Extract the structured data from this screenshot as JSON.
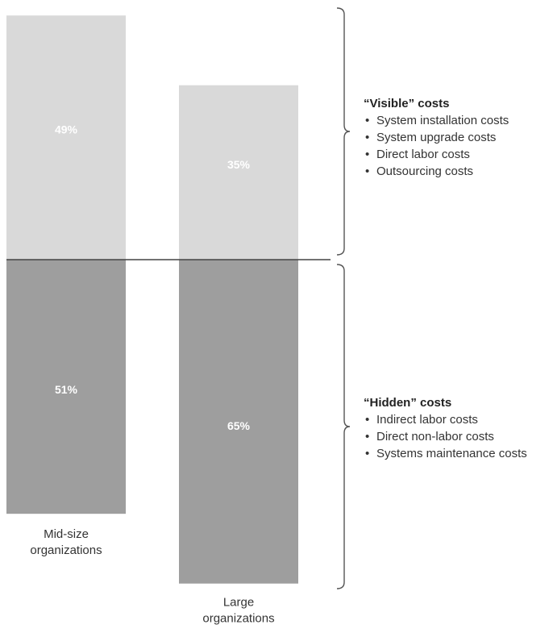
{
  "chart_data": {
    "type": "bar",
    "stacked": true,
    "categories": [
      "Mid-size\norganizations",
      "Large\norganizations"
    ],
    "series": [
      {
        "name": "“Hidden” costs",
        "values": [
          51,
          65
        ],
        "labels": [
          "51%",
          "65%"
        ],
        "color": "#9e9e9e"
      },
      {
        "name": "“Visible” costs",
        "values": [
          49,
          35
        ],
        "labels": [
          "49%",
          "35%"
        ],
        "color": "#d9d9d9"
      }
    ],
    "reference_line_color": "#444444",
    "bracket_color": "#555555"
  },
  "annotations": {
    "visible": {
      "title": "“Visible” costs",
      "items": [
        "System installation costs",
        "System upgrade costs",
        "Direct labor costs",
        "Outsourcing costs"
      ]
    },
    "hidden": {
      "title": "“Hidden” costs",
      "items": [
        "Indirect labor costs",
        "Direct non-labor costs",
        "Systems maintenance costs"
      ]
    }
  }
}
